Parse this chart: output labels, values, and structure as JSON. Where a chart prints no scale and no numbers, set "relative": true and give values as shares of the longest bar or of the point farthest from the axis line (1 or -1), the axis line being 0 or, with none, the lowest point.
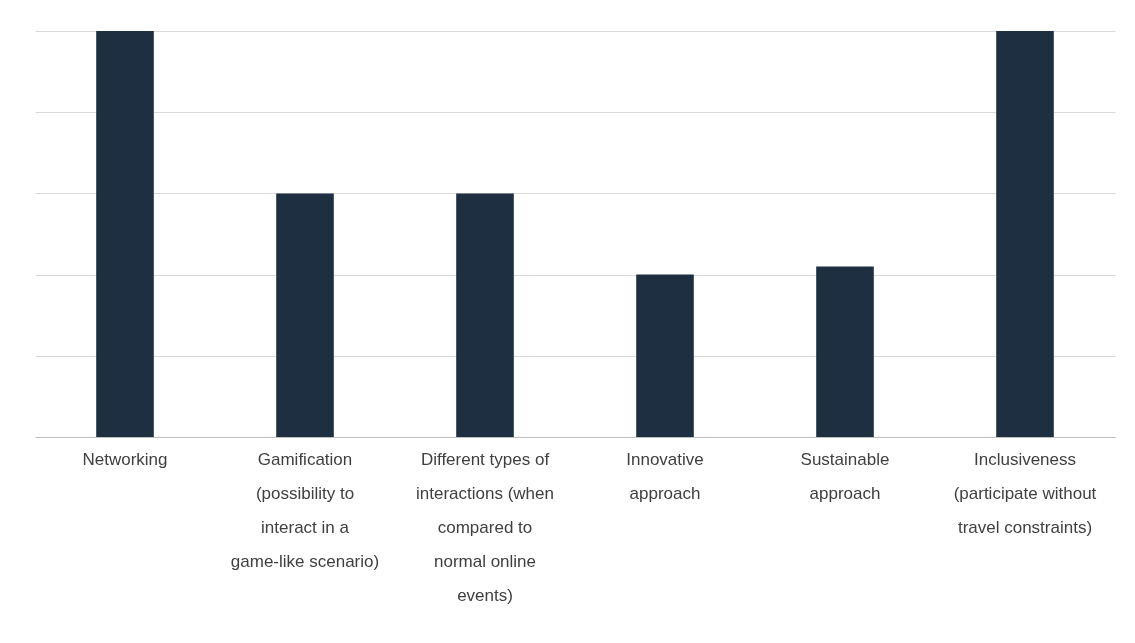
{
  "chart_data": {
    "type": "bar",
    "relative": true,
    "grid": true,
    "color": "#1e2f42",
    "categories": [
      "Networking",
      "Gamification (possibility to interact in a game-like scenario)",
      "Different types of interactions (when compared to normal online events)",
      "Innovative approach",
      "Sustainable approach",
      "Inclusiveness (participate without travel constraints)"
    ],
    "values": [
      1,
      0.6,
      0.6,
      0.4,
      0.42,
      1
    ]
  }
}
